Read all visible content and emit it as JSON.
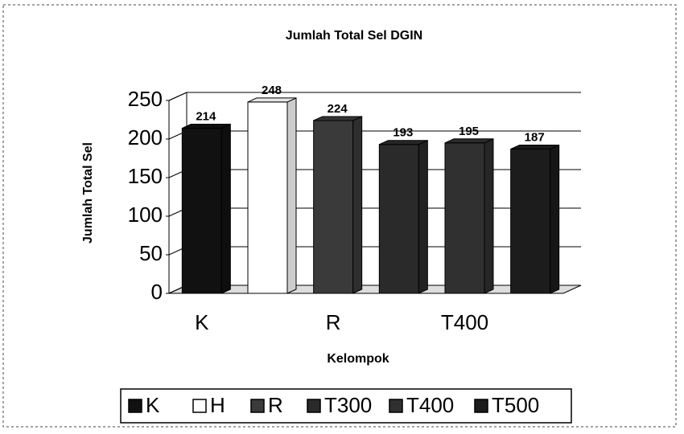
{
  "chart_data": {
    "type": "bar3d",
    "title": "Jumlah Total Sel DGIN",
    "y_label": "Jumlah Total Sel",
    "x_label": "Kelompok",
    "categories": [
      "K",
      null,
      "R",
      null,
      "T400",
      null
    ],
    "values": [
      214,
      248,
      224,
      193,
      195,
      187
    ],
    "legend": [
      {
        "name": "K",
        "color": "#111111"
      },
      {
        "name": "H",
        "color": "#ffffff"
      },
      {
        "name": "R",
        "color": "#3a3a3a"
      },
      {
        "name": "T300",
        "color": "#2a2a2a"
      },
      {
        "name": "T400",
        "color": "#303030"
      },
      {
        "name": "T500",
        "color": "#1c1c1c"
      }
    ],
    "ylim": [
      0,
      250
    ],
    "yticks": [
      0,
      50,
      100,
      150,
      200,
      250
    ],
    "grid": true
  }
}
